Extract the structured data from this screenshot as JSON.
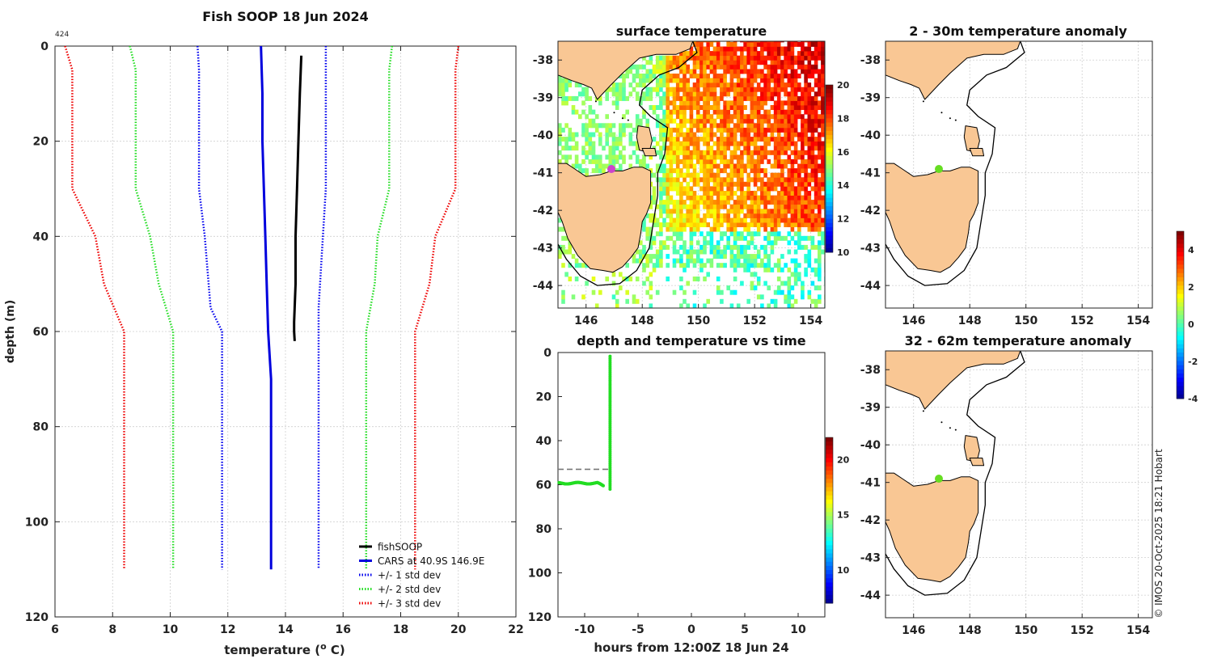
{
  "chart_data": [
    {
      "id": "profile",
      "type": "line",
      "title": "Fish SOOP 18 Jun 2024",
      "annotation": "424",
      "xlabel": "temperature (",
      "xlabel_sup": "o",
      "xlabel_end": " C)",
      "ylabel": "depth (m)",
      "xlim": [
        6,
        22
      ],
      "ylim": [
        0,
        120
      ],
      "y_reversed": true,
      "grid": true,
      "xticks": [
        "6",
        "8",
        "10",
        "12",
        "14",
        "16",
        "18",
        "20",
        "22"
      ],
      "yticks": [
        "0",
        "20",
        "40",
        "60",
        "80",
        "100",
        "120"
      ],
      "legend_position": "bottom-right",
      "series": [
        {
          "name": "fishSOOP",
          "color": "#000000",
          "style": "solid",
          "width": 3,
          "points": [
            [
              14.55,
              2
            ],
            [
              14.5,
              10
            ],
            [
              14.45,
              20
            ],
            [
              14.4,
              30
            ],
            [
              14.35,
              40
            ],
            [
              14.35,
              50
            ],
            [
              14.3,
              58
            ],
            [
              14.3,
              60
            ],
            [
              14.32,
              62
            ]
          ]
        },
        {
          "name": "CARS at 40.9S 146.9E",
          "color": "#0000dd",
          "style": "solid",
          "width": 3,
          "points": [
            [
              13.15,
              0
            ],
            [
              13.2,
              10
            ],
            [
              13.2,
              20
            ],
            [
              13.25,
              30
            ],
            [
              13.3,
              40
            ],
            [
              13.35,
              50
            ],
            [
              13.4,
              60
            ],
            [
              13.5,
              70
            ],
            [
              13.5,
              80
            ],
            [
              13.5,
              90
            ],
            [
              13.5,
              100
            ],
            [
              13.5,
              110
            ]
          ]
        },
        {
          "name": "+/- 1 std dev",
          "color": "#0000ee",
          "style": "dotted",
          "width": 2.5,
          "points": [
            [
              10.95,
              0
            ],
            [
              11.0,
              5
            ],
            [
              11.0,
              30
            ],
            [
              11.2,
              40
            ],
            [
              11.4,
              55
            ],
            [
              11.8,
              60
            ],
            [
              11.8,
              110
            ]
          ],
          "mirror_points": [
            [
              15.4,
              0
            ],
            [
              15.4,
              5
            ],
            [
              15.4,
              30
            ],
            [
              15.3,
              40
            ],
            [
              15.15,
              55
            ],
            [
              15.15,
              60
            ],
            [
              15.15,
              110
            ]
          ]
        },
        {
          "name": "+/- 2 std dev",
          "color": "#22dd22",
          "style": "dotted",
          "width": 2.5,
          "points": [
            [
              8.6,
              0
            ],
            [
              8.8,
              5
            ],
            [
              8.8,
              30
            ],
            [
              9.3,
              40
            ],
            [
              9.6,
              50
            ],
            [
              10.1,
              60
            ],
            [
              10.1,
              110
            ]
          ],
          "mirror_points": [
            [
              17.7,
              0
            ],
            [
              17.6,
              5
            ],
            [
              17.6,
              30
            ],
            [
              17.2,
              40
            ],
            [
              17.1,
              50
            ],
            [
              16.8,
              60
            ],
            [
              16.8,
              110
            ]
          ]
        },
        {
          "name": "+/- 3 std dev",
          "color": "#ee0000",
          "style": "dotted",
          "width": 2.5,
          "points": [
            [
              6.35,
              0
            ],
            [
              6.6,
              5
            ],
            [
              6.6,
              30
            ],
            [
              7.4,
              40
            ],
            [
              7.7,
              50
            ],
            [
              8.4,
              60
            ],
            [
              8.4,
              110
            ]
          ],
          "mirror_points": [
            [
              20.0,
              0
            ],
            [
              19.9,
              5
            ],
            [
              19.9,
              30
            ],
            [
              19.2,
              40
            ],
            [
              19.0,
              50
            ],
            [
              18.5,
              60
            ],
            [
              18.5,
              110
            ]
          ]
        }
      ]
    },
    {
      "id": "sst",
      "type": "heatmap",
      "title": "surface temperature",
      "xlim": [
        145,
        154.5
      ],
      "ylim": [
        -44.6,
        -37.5
      ],
      "xticks": [
        "146",
        "148",
        "150",
        "152",
        "154"
      ],
      "yticks": [
        "-38",
        "-39",
        "-40",
        "-41",
        "-42",
        "-43",
        "-44"
      ],
      "colorbar": {
        "min": 10,
        "max": 20,
        "ticks": [
          "20",
          "18",
          "16",
          "14",
          "12",
          "10"
        ]
      },
      "marker": {
        "lon": 146.9,
        "lat": -40.9,
        "color": "#cc44cc"
      }
    },
    {
      "id": "depth_time",
      "type": "scatter",
      "title": "depth and temperature vs time",
      "xlabel": "hours from 12:00Z 18 Jun 24",
      "xlim": [
        -12.5,
        12.5
      ],
      "ylim": [
        0,
        120
      ],
      "y_reversed": true,
      "xticks": [
        "-10",
        "-5",
        "0",
        "5",
        "10"
      ],
      "yticks": [
        "0",
        "20",
        "40",
        "60",
        "80",
        "100",
        "120"
      ],
      "reference_depth": 53,
      "colorbar": {
        "min": 7,
        "max": 22,
        "ticks": [
          "20",
          "15",
          "10"
        ]
      },
      "points_color": "#22dd22"
    },
    {
      "id": "anom_shallow",
      "type": "heatmap",
      "title": "2 - 30m temperature anomaly",
      "xlim": [
        145,
        154.5
      ],
      "ylim": [
        -44.6,
        -37.5
      ],
      "xticks": [
        "146",
        "148",
        "150",
        "152",
        "154"
      ],
      "yticks": [
        "-38",
        "-39",
        "-40",
        "-41",
        "-42",
        "-43",
        "-44"
      ],
      "marker": {
        "lon": 146.9,
        "lat": -40.9,
        "color": "#66dd22"
      }
    },
    {
      "id": "anom_deep",
      "type": "heatmap",
      "title": "32 - 62m temperature anomaly",
      "xlim": [
        145,
        154.5
      ],
      "ylim": [
        -44.6,
        -37.5
      ],
      "xticks": [
        "146",
        "148",
        "150",
        "152",
        "154"
      ],
      "yticks": [
        "-38",
        "-39",
        "-40",
        "-41",
        "-42",
        "-43",
        "-44"
      ],
      "colorbar": {
        "min": -4,
        "max": 5,
        "ticks": [
          "4",
          "2",
          "0",
          "-2",
          "-4"
        ]
      },
      "marker": {
        "lon": 146.9,
        "lat": -40.9,
        "color": "#66dd22"
      }
    }
  ],
  "credit": "© IMOS 20-Oct-2025 18:21 Hobart",
  "colors": {
    "land": "#f9c794",
    "coast": "#000000",
    "grid": "#cfcfcf"
  }
}
